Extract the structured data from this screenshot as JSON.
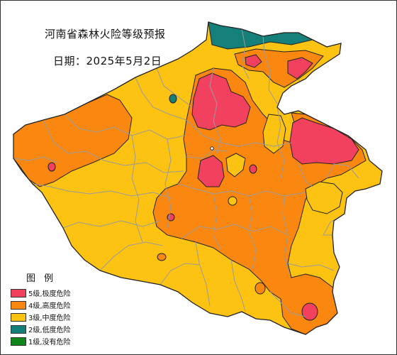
{
  "map": {
    "title": "河南省森林火险等级预报",
    "date": "日期：2025年5月2日"
  },
  "legend": {
    "title": "图 例",
    "items": [
      {
        "label": "5级,极度危险",
        "color": "#f2415f"
      },
      {
        "label": "4级,高度危险",
        "color": "#fa8710"
      },
      {
        "label": "3级,中度危险",
        "color": "#fcc312"
      },
      {
        "label": "2级,低度危险",
        "color": "#15807a"
      },
      {
        "label": "1级,没有危险",
        "color": "#10851a"
      }
    ]
  },
  "colors": {
    "level5": "#f2415f",
    "level4": "#fa8710",
    "level3": "#fcc312",
    "level2": "#15807a",
    "boundary": "#9a9a9a",
    "outline": "#222222"
  }
}
